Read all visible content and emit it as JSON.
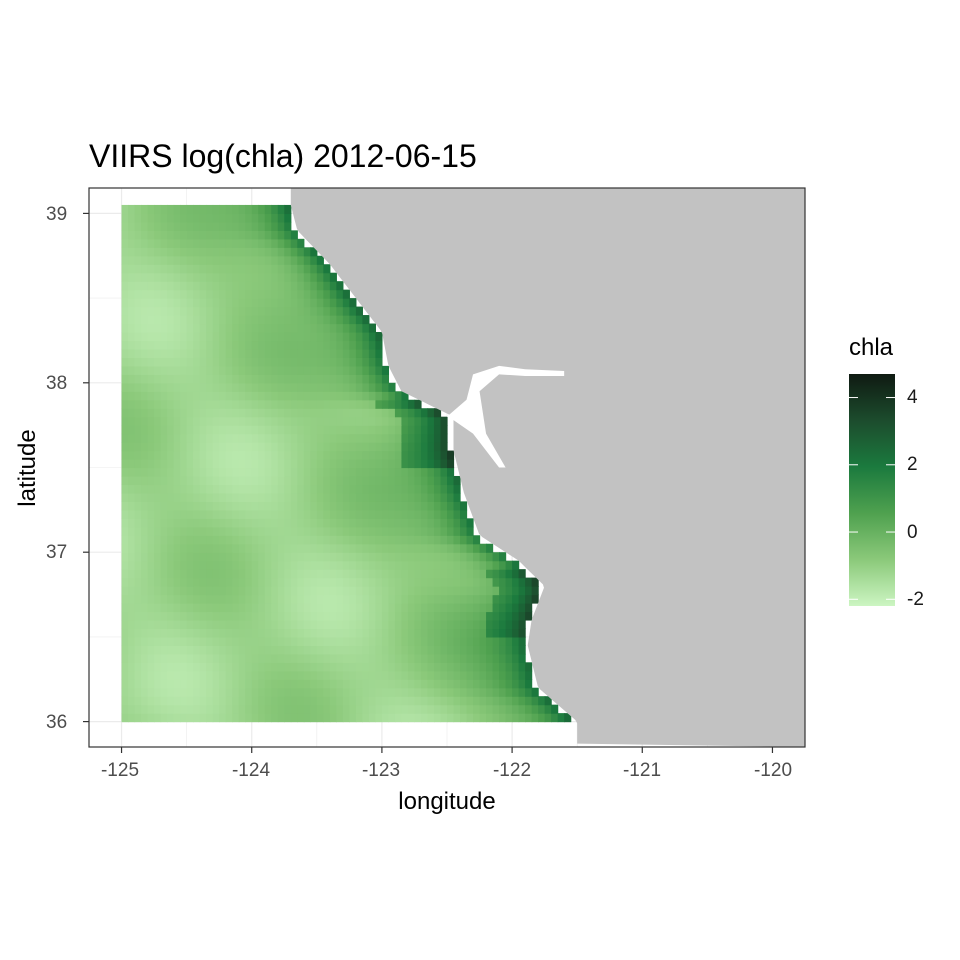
{
  "title": "VIIRS log(chla) 2012-06-15",
  "axes": {
    "x": {
      "label": "longitude",
      "ticks": [
        -125,
        -124,
        -123,
        -122,
        -121,
        -120
      ],
      "tick_labels": [
        "-125",
        "-124",
        "-123",
        "-122",
        "-121",
        "-120"
      ]
    },
    "y": {
      "label": "latitude",
      "ticks": [
        36,
        37,
        38,
        39
      ],
      "tick_labels": [
        "36",
        "37",
        "38",
        "39"
      ]
    }
  },
  "legend": {
    "title": "chla",
    "ticks": [
      4,
      2,
      0,
      -2
    ],
    "tick_labels": [
      "4",
      "2",
      "0",
      "-2"
    ],
    "range": [
      -2.2,
      4.7
    ],
    "colors": [
      "#ccf5c2",
      "#8bc97a",
      "#4fa14f",
      "#1b7a3e",
      "#1c4c2d",
      "#0f1a12"
    ]
  },
  "colors": {
    "land": "#c2c2c2",
    "panel_border": "#333333",
    "grid": "#ebebeb"
  },
  "chart_data": {
    "type": "heatmap",
    "title": "VIIRS log(chla) 2012-06-15",
    "xlabel": "longitude",
    "ylabel": "latitude",
    "xlim": [
      -125.25,
      -119.75
    ],
    "ylim": [
      35.85,
      39.15
    ],
    "data_extent": {
      "lon": [
        -125,
        -121.4
      ],
      "lat": [
        36,
        39.05
      ]
    },
    "value_range": [
      -2.2,
      4.7
    ],
    "legend_title": "chla",
    "grid": true
  }
}
